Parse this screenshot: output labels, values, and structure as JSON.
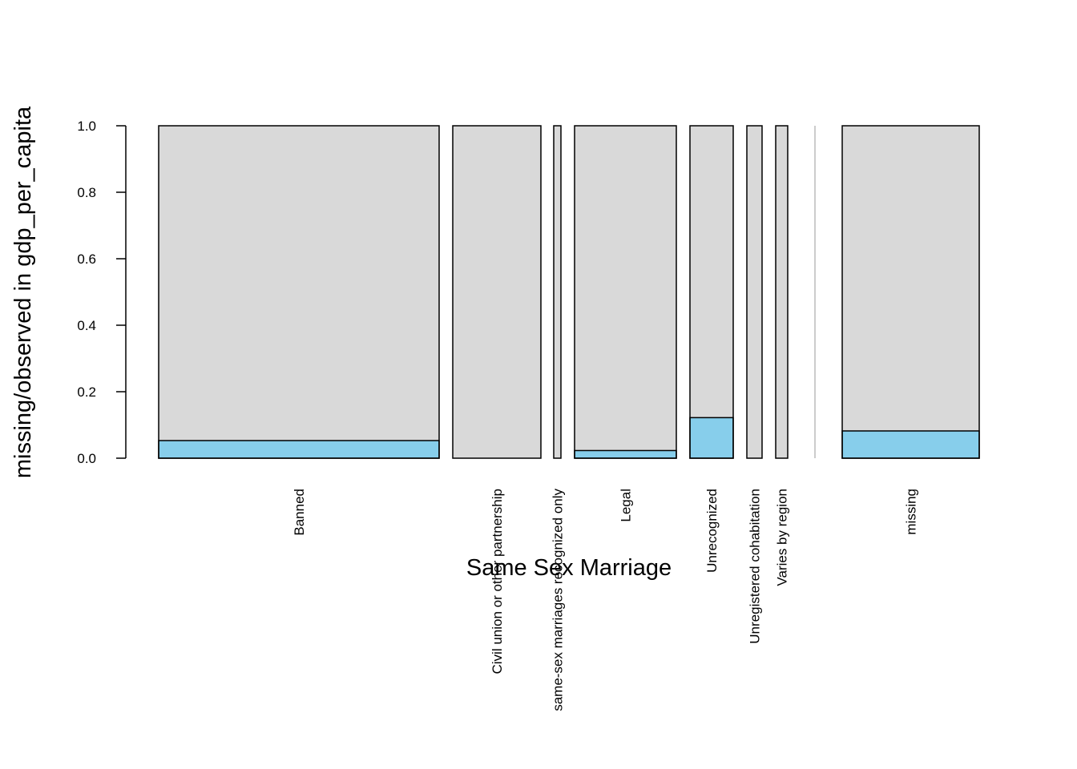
{
  "chart_data": {
    "type": "bar",
    "xlabel": "Same Sex Marriage",
    "ylabel": "missing/observed in gdp_per_capita",
    "ylim": [
      0,
      1
    ],
    "yticks": [
      "0.0",
      "0.2",
      "0.4",
      "0.6",
      "0.8",
      "1.0"
    ],
    "grid": false,
    "colors": {
      "missing": "#87CEEB",
      "observed": "#D9D9D9",
      "separator": "#CCCCCC"
    },
    "categories": [
      "Banned",
      "Civil union or other partnership",
      "same-sex marriages recognized only",
      "Legal",
      "Unrecognized",
      "Unregistered cohabitation",
      "Varies by region",
      "missing"
    ],
    "relative_count": [
      0.36,
      0.11,
      0.01,
      0.13,
      0.055,
      0.02,
      0.017,
      0.175
    ],
    "series": [
      {
        "values": [
          0.053,
          0.0,
          0.0,
          0.023,
          0.122,
          0.0,
          0.0,
          0.082
        ]
      },
      {
        "values": [
          0.947,
          1.0,
          1.0,
          0.977,
          0.878,
          1.0,
          1.0,
          0.918
        ]
      }
    ]
  }
}
